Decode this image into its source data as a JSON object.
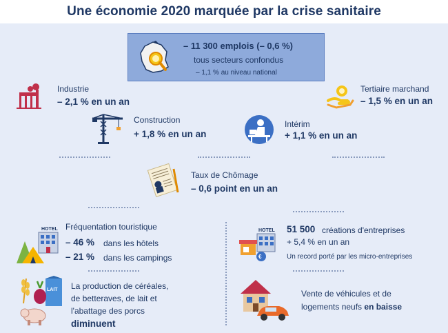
{
  "title": "Une économie 2020 marquée par la crise sanitaire",
  "hero": {
    "headline": "–  11 300 emplois (–  0,6 %)",
    "subtitle": "tous secteurs confondus",
    "national": "– 1,1 % au niveau national"
  },
  "industrie": {
    "label": "Industrie",
    "value": "– 2,1 % en un an"
  },
  "tertiaire": {
    "label": "Tertiaire marchand",
    "value": "– 1,5 % en un an"
  },
  "construction": {
    "label": "Construction",
    "value": "+ 1,8 % en un an"
  },
  "interim": {
    "label": "Intérim",
    "value": "+ 1,1 % en un an"
  },
  "chomage": {
    "label": "Taux de Chômage",
    "value": "– 0,6 point en un an"
  },
  "tourisme": {
    "label": "Fréquentation touristique",
    "hotels_value": "– 46 %",
    "hotels_text": "dans les hôtels",
    "campings_value": "– 21 %",
    "campings_text": "dans les campings",
    "hotel_sign": "HOTEL"
  },
  "entreprises": {
    "count": "51 500",
    "count_text": "créations d'entreprises",
    "growth": "+ 5,4 % en un an",
    "record": "Un record porté par les micro-entreprises",
    "hotel_sign": "HOTEL"
  },
  "agriculture": {
    "line1": "La production de céréales,",
    "line2": "de betteraves, de lait et",
    "line3": "l'abattage des porcs",
    "line4": "diminuent",
    "milk_label": "LAIT"
  },
  "vehicules": {
    "line1": "Vente de véhicules et de",
    "line2_prefix": "logements neufs ",
    "line2_bold": "en baisse"
  },
  "colors": {
    "navy": "#1f3864",
    "hero_bg": "#8eaadb",
    "background": "#e6ecf8",
    "industry_red": "#c0304a",
    "accent_orange": "#f0a030",
    "accent_yellow": "#f5c518"
  }
}
